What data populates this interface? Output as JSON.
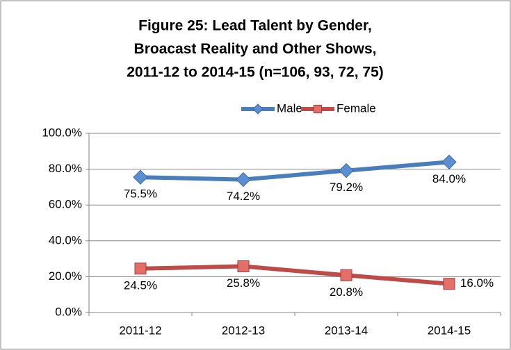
{
  "chart_data": {
    "type": "line",
    "title": [
      "Figure 25:  Lead Talent by Gender,",
      "Broacast Reality and Other Shows,",
      "2011-12 to 2014-15 (n=106, 93, 72, 75)"
    ],
    "categories": [
      "2011-12",
      "2012-13",
      "2013-14",
      "2014-15"
    ],
    "series": [
      {
        "name": "Male",
        "color": "#4a7ebb",
        "marker": "diamond",
        "values": [
          75.5,
          74.2,
          79.2,
          84.0
        ],
        "value_labels": [
          "75.5%",
          "74.2%",
          "79.2%",
          "84.0%"
        ]
      },
      {
        "name": "Female",
        "color": "#be4b48",
        "marker": "square",
        "values": [
          24.5,
          25.8,
          20.8,
          16.0
        ],
        "value_labels": [
          "24.5%",
          "25.8%",
          "20.8%",
          "16.0%"
        ]
      }
    ],
    "ylim": [
      0,
      100
    ],
    "yticks": [
      {
        "value": 0,
        "label": "0.0%"
      },
      {
        "value": 20,
        "label": "20.0%"
      },
      {
        "value": 40,
        "label": "40.0%"
      },
      {
        "value": 60,
        "label": "60.0%"
      },
      {
        "value": 80,
        "label": "80.0%"
      },
      {
        "value": 100,
        "label": "100.0%"
      }
    ],
    "grid": true,
    "legend": "top"
  }
}
